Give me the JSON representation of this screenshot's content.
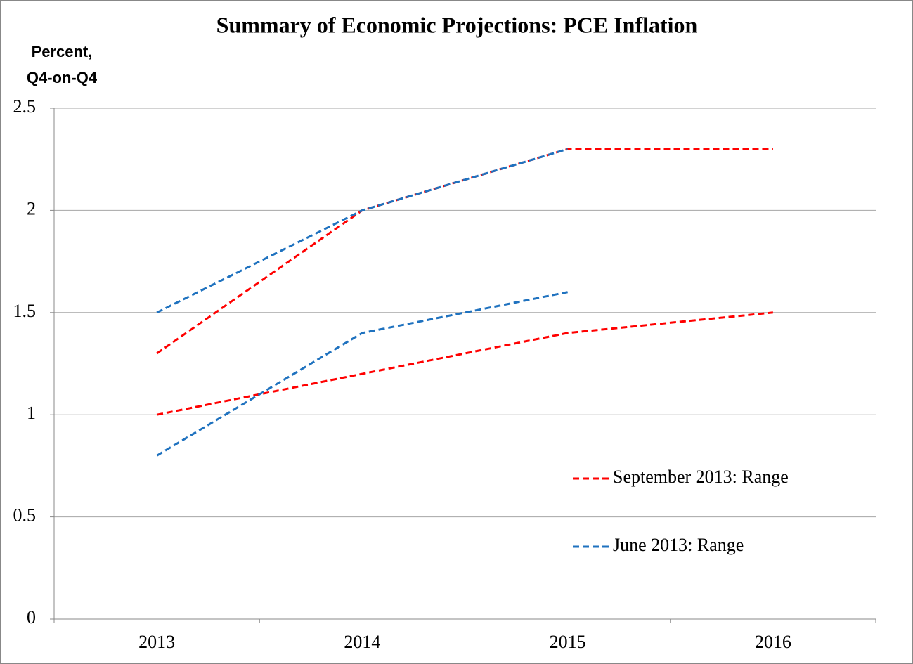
{
  "chart_data": {
    "type": "line",
    "title": "Summary of Economic Projections: PCE Inflation",
    "ylabel": [
      "Percent,",
      "Q4-on-Q4"
    ],
    "categories": [
      "2013",
      "2014",
      "2015",
      "2016"
    ],
    "series": [
      {
        "name": "September 2013: Range",
        "color": "#ff0000",
        "high": [
          1.3,
          2.0,
          2.3,
          2.3
        ],
        "low": [
          1.0,
          1.2,
          1.4,
          1.5
        ]
      },
      {
        "name": "June 2013: Range",
        "color": "#1f72bf",
        "high": [
          1.5,
          2.0,
          2.3,
          null
        ],
        "low": [
          0.8,
          1.4,
          1.6,
          null
        ]
      }
    ],
    "ylim": [
      0,
      2.5
    ],
    "yticks": [
      0,
      0.5,
      1,
      1.5,
      2,
      2.5
    ],
    "grid": true
  }
}
